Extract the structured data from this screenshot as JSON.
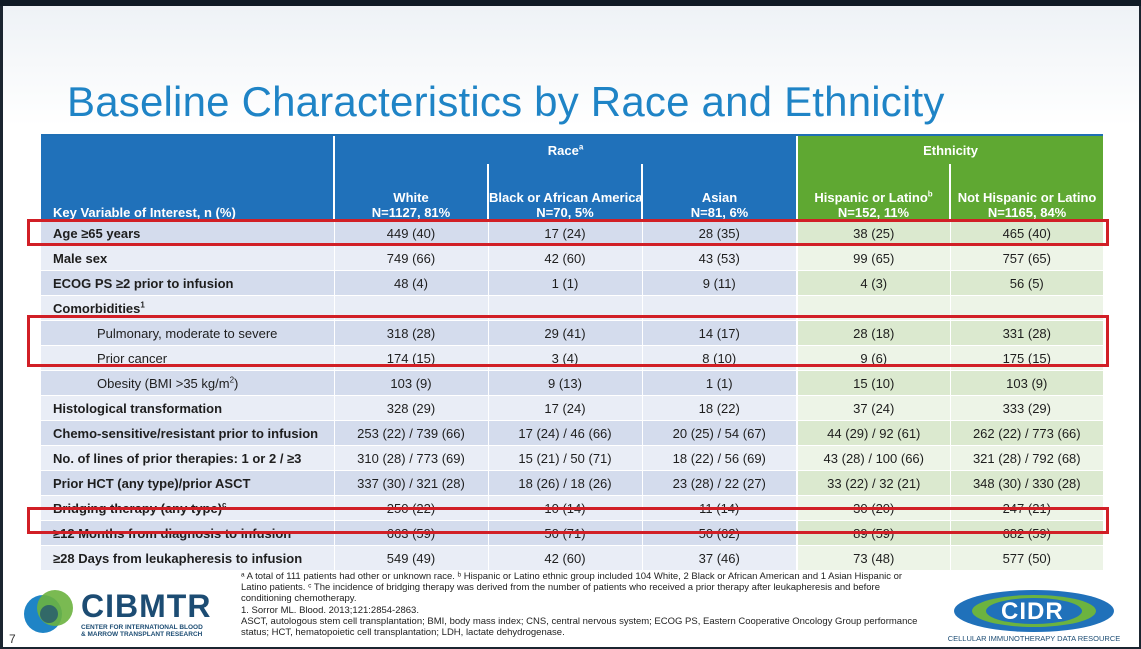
{
  "slide": {
    "title": "Baseline Characteristics by Race and Ethnicity",
    "page_number": "7"
  },
  "table": {
    "group_headers": {
      "race": "Race",
      "race_sup": "a",
      "ethnicity": "Ethnicity"
    },
    "key_header": "Key Variable of Interest, n (%)",
    "columns": [
      {
        "name": "White",
        "sup": "",
        "n": "N=1127, 81%"
      },
      {
        "name": "Black or African American",
        "sup": "",
        "n": "N=70, 5%"
      },
      {
        "name": "Asian",
        "sup": "",
        "n": "N=81, 6%"
      },
      {
        "name": "Hispanic or Latino",
        "sup": "b",
        "n": "N=152, 11%"
      },
      {
        "name": "Not Hispanic or Latino",
        "sup": "",
        "n": "N=1165, 84%"
      }
    ],
    "rows": [
      {
        "label": "Age ≥65 years",
        "sup": "",
        "indent": false,
        "values": [
          "449 (40)",
          "17 (24)",
          "28 (35)",
          "38 (25)",
          "465 (40)"
        ]
      },
      {
        "label": "Male sex",
        "sup": "",
        "indent": false,
        "values": [
          "749 (66)",
          "42 (60)",
          "43 (53)",
          "99 (65)",
          "757 (65)"
        ]
      },
      {
        "label": "ECOG PS ≥2 prior to infusion",
        "sup": "",
        "indent": false,
        "values": [
          "48 (4)",
          "1 (1)",
          "9 (11)",
          "4 (3)",
          "56 (5)"
        ]
      },
      {
        "label": "Comorbidities",
        "sup": "1",
        "indent": false,
        "values": [
          "",
          "",
          "",
          "",
          ""
        ]
      },
      {
        "label": "Pulmonary, moderate to severe",
        "sup": "",
        "indent": true,
        "values": [
          "318 (28)",
          "29 (41)",
          "14 (17)",
          "28 (18)",
          "331 (28)"
        ]
      },
      {
        "label": "Prior cancer",
        "sup": "",
        "indent": true,
        "values": [
          "174 (15)",
          "3 (4)",
          "8 (10)",
          "9 (6)",
          "175 (15)"
        ]
      },
      {
        "label": "Obesity (BMI >35 kg/m",
        "sup": "2",
        "suffix": ")",
        "indent": true,
        "values": [
          "103 (9)",
          "9 (13)",
          "1 (1)",
          "15 (10)",
          "103 (9)"
        ]
      },
      {
        "label": "Histological transformation",
        "sup": "",
        "indent": false,
        "values": [
          "328 (29)",
          "17 (24)",
          "18 (22)",
          "37 (24)",
          "333 (29)"
        ]
      },
      {
        "label": "Chemo-sensitive/resistant prior to infusion",
        "sup": "",
        "indent": false,
        "values": [
          "253 (22) / 739 (66)",
          "17 (24) / 46 (66)",
          "20 (25) / 54 (67)",
          "44 (29) / 92 (61)",
          "262 (22) / 773 (66)"
        ]
      },
      {
        "label": "No. of lines of prior therapies: 1 or 2 / ≥3",
        "sup": "",
        "indent": false,
        "values": [
          "310 (28) / 773 (69)",
          "15 (21) / 50 (71)",
          "18 (22) / 56 (69)",
          "43 (28) / 100 (66)",
          "321 (28) / 792 (68)"
        ]
      },
      {
        "label": "Prior HCT (any type)/prior ASCT",
        "sup": "",
        "indent": false,
        "values": [
          "337 (30) / 321 (28)",
          "18 (26) / 18 (26)",
          "23 (28) / 22 (27)",
          "33 (22) / 32 (21)",
          "348 (30) / 330 (28)"
        ]
      },
      {
        "label": "Bridging therapy (any type)",
        "sup": "c",
        "indent": false,
        "values": [
          "250 (22)",
          "10 (14)",
          "11 (14)",
          "30 (20)",
          "247 (21)"
        ]
      },
      {
        "label": "≥12 Months from diagnosis to infusion",
        "sup": "",
        "indent": false,
        "values": [
          "663 (59)",
          "50 (71)",
          "50 (62)",
          "89 (59)",
          "682 (59)"
        ]
      },
      {
        "label": "≥28 Days from leukapheresis to infusion",
        "sup": "",
        "indent": false,
        "values": [
          "549 (49)",
          "42 (60)",
          "37 (46)",
          "73 (48)",
          "577 (50)"
        ]
      }
    ]
  },
  "footnotes": [
    "ᵃ A total of 111 patients had other or unknown race. ᵇ Hispanic or Latino ethnic group included 104 White, 2 Black or African American and 1 Asian Hispanic or Latino patients. ᶜ The incidence of bridging therapy was derived from the number of patients who received a prior therapy after leukapheresis and before conditioning chemotherapy.",
    "1. Sorror ML. Blood. 2013;121:2854-2863.",
    "ASCT, autologous stem cell transplantation; BMI, body mass index; CNS, central nervous system; ECOG PS, Eastern Cooperative Oncology Group performance status; HCT, hematopoietic cell transplantation; LDH, lactate dehydrogenase."
  ],
  "logos": {
    "cibmtr": {
      "name": "CIBMTR",
      "subtitle_line1": "CENTER FOR INTERNATIONAL BLOOD",
      "subtitle_line2": "& MARROW TRANSPLANT RESEARCH"
    },
    "cidr": {
      "name": "CIDR",
      "subtitle": "CELLULAR IMMUNOTHERAPY DATA RESOURCE"
    }
  },
  "colors": {
    "title": "#1f84c6",
    "race_header": "#2071ba",
    "ethnicity_header": "#5fa832",
    "highlight": "#d11f26"
  }
}
